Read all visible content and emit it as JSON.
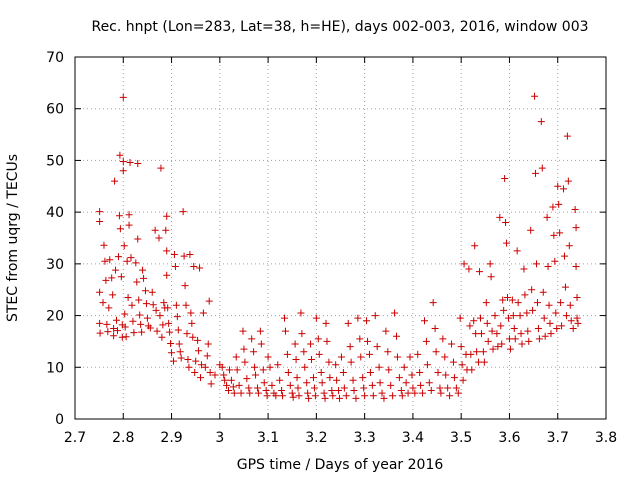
{
  "chart_data": {
    "type": "scatter",
    "title": "Rec. hnpt (Lon=283, Lat=38, h=HE), days 002-003, 2016, window 003",
    "xlabel": "GPS time / Days of year 2016",
    "ylabel": "STEC from uqrg / TECUs",
    "xlim": [
      2.7,
      3.8
    ],
    "ylim": [
      0,
      70
    ],
    "xticks": [
      "2.7",
      "2.8",
      "2.9",
      "3",
      "3.1",
      "3.2",
      "3.3",
      "3.4",
      "3.5",
      "3.6",
      "3.7",
      "3.8"
    ],
    "yticks": [
      "0",
      "10",
      "20",
      "30",
      "40",
      "50",
      "60",
      "70"
    ],
    "grid": true,
    "marker": "+",
    "color": "#cc0000",
    "points": [
      [
        2.751,
        40.1
      ],
      [
        2.751,
        38.2
      ],
      [
        2.751,
        24.5
      ],
      [
        2.751,
        18.5
      ],
      [
        2.752,
        16.6
      ],
      [
        2.758,
        22.5
      ],
      [
        2.76,
        33.6
      ],
      [
        2.762,
        30.5
      ],
      [
        2.764,
        26.8
      ],
      [
        2.766,
        18.3
      ],
      [
        2.768,
        16.9
      ],
      [
        2.77,
        21.5
      ],
      [
        2.772,
        30.8
      ],
      [
        2.776,
        27.3
      ],
      [
        2.778,
        24.0
      ],
      [
        2.78,
        17.5
      ],
      [
        2.78,
        16.1
      ],
      [
        2.782,
        46.0
      ],
      [
        2.784,
        28.8
      ],
      [
        2.786,
        19.1
      ],
      [
        2.788,
        17.1
      ],
      [
        2.79,
        31.4
      ],
      [
        2.792,
        39.3
      ],
      [
        2.793,
        51.0
      ],
      [
        2.794,
        36.8
      ],
      [
        2.796,
        27.5
      ],
      [
        2.798,
        18.2
      ],
      [
        2.798,
        15.8
      ],
      [
        2.8,
        62.2
      ],
      [
        2.8,
        49.8
      ],
      [
        2.8,
        48.0
      ],
      [
        2.802,
        33.5
      ],
      [
        2.803,
        20.3
      ],
      [
        2.804,
        17.8
      ],
      [
        2.806,
        15.9
      ],
      [
        2.808,
        30.5
      ],
      [
        2.81,
        23.5
      ],
      [
        2.812,
        39.5
      ],
      [
        2.812,
        37.5
      ],
      [
        2.814,
        49.6
      ],
      [
        2.816,
        31.2
      ],
      [
        2.818,
        22.0
      ],
      [
        2.82,
        18.9
      ],
      [
        2.822,
        16.7
      ],
      [
        2.826,
        30.2
      ],
      [
        2.828,
        26.5
      ],
      [
        2.83,
        49.4
      ],
      [
        2.83,
        34.8
      ],
      [
        2.832,
        23.0
      ],
      [
        2.834,
        20.1
      ],
      [
        2.836,
        18.3
      ],
      [
        2.838,
        16.8
      ],
      [
        2.84,
        28.8
      ],
      [
        2.842,
        27.2
      ],
      [
        2.846,
        24.8
      ],
      [
        2.848,
        22.3
      ],
      [
        2.85,
        19.5
      ],
      [
        2.852,
        18.0
      ],
      [
        2.856,
        17.6
      ],
      [
        2.86,
        24.5
      ],
      [
        2.862,
        22.1
      ],
      [
        2.866,
        36.5
      ],
      [
        2.868,
        21.0
      ],
      [
        2.87,
        17.0
      ],
      [
        2.874,
        35.0
      ],
      [
        2.876,
        20.0
      ],
      [
        2.878,
        48.5
      ],
      [
        2.88,
        15.8
      ],
      [
        2.882,
        18.2
      ],
      [
        2.884,
        22.5
      ],
      [
        2.886,
        21.5
      ],
      [
        2.888,
        36.5
      ],
      [
        2.89,
        39.2
      ],
      [
        2.89,
        32.5
      ],
      [
        2.89,
        27.8
      ],
      [
        2.892,
        21.5
      ],
      [
        2.894,
        18.5
      ],
      [
        2.896,
        16.8
      ],
      [
        2.898,
        14.6
      ],
      [
        2.9,
        12.8
      ],
      [
        2.904,
        11.2
      ],
      [
        2.906,
        31.8
      ],
      [
        2.908,
        29.5
      ],
      [
        2.91,
        22.0
      ],
      [
        2.912,
        19.8
      ],
      [
        2.914,
        17.2
      ],
      [
        2.916,
        14.5
      ],
      [
        2.918,
        13.0
      ],
      [
        2.92,
        11.8
      ],
      [
        2.924,
        40.1
      ],
      [
        2.926,
        31.5
      ],
      [
        2.928,
        25.8
      ],
      [
        2.93,
        22.0
      ],
      [
        2.932,
        16.5
      ],
      [
        2.934,
        11.5
      ],
      [
        2.936,
        10.0
      ],
      [
        2.938,
        31.8
      ],
      [
        2.94,
        20.5
      ],
      [
        2.942,
        18.5
      ],
      [
        2.944,
        15.8
      ],
      [
        2.946,
        29.5
      ],
      [
        2.948,
        9.0
      ],
      [
        2.95,
        11.2
      ],
      [
        2.954,
        15.2
      ],
      [
        2.956,
        13.2
      ],
      [
        2.958,
        29.2
      ],
      [
        2.96,
        8.0
      ],
      [
        2.962,
        10.5
      ],
      [
        2.966,
        20.5
      ],
      [
        2.97,
        10.0
      ],
      [
        2.974,
        12.2
      ],
      [
        2.976,
        14.5
      ],
      [
        2.978,
        22.8
      ],
      [
        2.98,
        9.0
      ],
      [
        2.982,
        6.8
      ],
      [
        2.99,
        8.5
      ],
      [
        3.0,
        10.5
      ],
      [
        3.005,
        10.0
      ],
      [
        3.008,
        8.5
      ],
      [
        3.01,
        7.5
      ],
      [
        3.014,
        6.5
      ],
      [
        3.018,
        5.5
      ],
      [
        3.02,
        9.5
      ],
      [
        3.024,
        7.5
      ],
      [
        3.028,
        6.2
      ],
      [
        3.03,
        5.0
      ],
      [
        3.034,
        12.0
      ],
      [
        3.036,
        9.5
      ],
      [
        3.04,
        6.5
      ],
      [
        3.044,
        5.0
      ],
      [
        3.048,
        17.0
      ],
      [
        3.05,
        13.5
      ],
      [
        3.052,
        11.0
      ],
      [
        3.056,
        7.8
      ],
      [
        3.06,
        6.0
      ],
      [
        3.062,
        5.0
      ],
      [
        3.066,
        15.5
      ],
      [
        3.07,
        13.0
      ],
      [
        3.072,
        10.0
      ],
      [
        3.074,
        8.5
      ],
      [
        3.078,
        6.0
      ],
      [
        3.08,
        5.0
      ],
      [
        3.084,
        17.0
      ],
      [
        3.086,
        14.5
      ],
      [
        3.09,
        9.5
      ],
      [
        3.092,
        7.0
      ],
      [
        3.096,
        5.5
      ],
      [
        3.098,
        4.5
      ],
      [
        3.1,
        12.0
      ],
      [
        3.104,
        10.0
      ],
      [
        3.108,
        6.5
      ],
      [
        3.112,
        5.0
      ],
      [
        3.116,
        4.5
      ],
      [
        3.12,
        10.5
      ],
      [
        3.124,
        7.5
      ],
      [
        3.128,
        5.5
      ],
      [
        3.13,
        4.5
      ],
      [
        3.134,
        19.5
      ],
      [
        3.136,
        17.0
      ],
      [
        3.14,
        12.5
      ],
      [
        3.142,
        9.0
      ],
      [
        3.146,
        6.5
      ],
      [
        3.15,
        5.0
      ],
      [
        3.152,
        4.2
      ],
      [
        3.156,
        14.5
      ],
      [
        3.158,
        11.5
      ],
      [
        3.16,
        8.0
      ],
      [
        3.162,
        6.0
      ],
      [
        3.164,
        4.5
      ],
      [
        3.168,
        20.5
      ],
      [
        3.17,
        16.5
      ],
      [
        3.174,
        13.0
      ],
      [
        3.176,
        10.0
      ],
      [
        3.18,
        7.0
      ],
      [
        3.182,
        5.0
      ],
      [
        3.184,
        4.0
      ],
      [
        3.188,
        14.5
      ],
      [
        3.19,
        11.5
      ],
      [
        3.194,
        8.0
      ],
      [
        3.196,
        6.0
      ],
      [
        3.198,
        4.5
      ],
      [
        3.2,
        19.5
      ],
      [
        3.204,
        15.5
      ],
      [
        3.206,
        12.5
      ],
      [
        3.21,
        9.0
      ],
      [
        3.212,
        7.0
      ],
      [
        3.216,
        5.0
      ],
      [
        3.218,
        4.0
      ],
      [
        3.22,
        18.5
      ],
      [
        3.222,
        15.0
      ],
      [
        3.226,
        11.0
      ],
      [
        3.228,
        8.0
      ],
      [
        3.232,
        5.5
      ],
      [
        3.234,
        4.5
      ],
      [
        3.24,
        10.5
      ],
      [
        3.242,
        7.5
      ],
      [
        3.246,
        5.5
      ],
      [
        3.248,
        4.0
      ],
      [
        3.252,
        12.0
      ],
      [
        3.256,
        9.0
      ],
      [
        3.258,
        6.0
      ],
      [
        3.262,
        4.5
      ],
      [
        3.266,
        18.5
      ],
      [
        3.27,
        14.0
      ],
      [
        3.272,
        11.0
      ],
      [
        3.276,
        7.5
      ],
      [
        3.278,
        5.5
      ],
      [
        3.282,
        4.0
      ],
      [
        3.286,
        19.5
      ],
      [
        3.29,
        15.5
      ],
      [
        3.292,
        12.0
      ],
      [
        3.296,
        8.0
      ],
      [
        3.298,
        6.0
      ],
      [
        3.3,
        4.5
      ],
      [
        3.304,
        19.0
      ],
      [
        3.306,
        15.0
      ],
      [
        3.31,
        12.5
      ],
      [
        3.312,
        9.0
      ],
      [
        3.316,
        6.5
      ],
      [
        3.318,
        4.5
      ],
      [
        3.322,
        20.0
      ],
      [
        3.326,
        14.0
      ],
      [
        3.33,
        10.0
      ],
      [
        3.332,
        7.0
      ],
      [
        3.336,
        5.0
      ],
      [
        3.34,
        4.0
      ],
      [
        3.344,
        17.0
      ],
      [
        3.348,
        13.0
      ],
      [
        3.35,
        9.5
      ],
      [
        3.354,
        6.5
      ],
      [
        3.358,
        4.5
      ],
      [
        3.362,
        20.5
      ],
      [
        3.366,
        16.0
      ],
      [
        3.368,
        12.0
      ],
      [
        3.372,
        8.0
      ],
      [
        3.376,
        5.5
      ],
      [
        3.378,
        4.5
      ],
      [
        3.382,
        10.0
      ],
      [
        3.386,
        7.0
      ],
      [
        3.39,
        5.0
      ],
      [
        3.394,
        12.0
      ],
      [
        3.398,
        8.5
      ],
      [
        3.4,
        6.0
      ],
      [
        3.404,
        5.0
      ],
      [
        3.41,
        12.5
      ],
      [
        3.414,
        9.0
      ],
      [
        3.416,
        6.5
      ],
      [
        3.42,
        5.0
      ],
      [
        3.424,
        19.0
      ],
      [
        3.428,
        15.0
      ],
      [
        3.43,
        10.5
      ],
      [
        3.434,
        7.0
      ],
      [
        3.438,
        5.5
      ],
      [
        3.442,
        22.5
      ],
      [
        3.446,
        17.5
      ],
      [
        3.448,
        13.0
      ],
      [
        3.452,
        9.0
      ],
      [
        3.456,
        6.0
      ],
      [
        3.458,
        5.0
      ],
      [
        3.462,
        15.5
      ],
      [
        3.466,
        12.0
      ],
      [
        3.468,
        8.5
      ],
      [
        3.472,
        6.0
      ],
      [
        3.476,
        4.5
      ],
      [
        3.48,
        14.5
      ],
      [
        3.484,
        11.0
      ],
      [
        3.486,
        8.0
      ],
      [
        3.49,
        6.0
      ],
      [
        3.494,
        5.0
      ],
      [
        3.498,
        19.5
      ],
      [
        3.5,
        14.0
      ],
      [
        3.502,
        10.5
      ],
      [
        3.504,
        7.5
      ],
      [
        3.506,
        30.0
      ],
      [
        3.51,
        12.5
      ],
      [
        3.512,
        9.5
      ],
      [
        3.516,
        29.0
      ],
      [
        3.518,
        18.0
      ],
      [
        3.52,
        12.5
      ],
      [
        3.522,
        9.5
      ],
      [
        3.526,
        19.0
      ],
      [
        3.528,
        33.5
      ],
      [
        3.53,
        16.5
      ],
      [
        3.532,
        13.0
      ],
      [
        3.536,
        11.0
      ],
      [
        3.538,
        28.5
      ],
      [
        3.54,
        19.5
      ],
      [
        3.542,
        16.5
      ],
      [
        3.546,
        13.0
      ],
      [
        3.548,
        11.0
      ],
      [
        3.552,
        22.5
      ],
      [
        3.554,
        18.5
      ],
      [
        3.556,
        15.0
      ],
      [
        3.56,
        30.0
      ],
      [
        3.562,
        27.5
      ],
      [
        3.564,
        17.0
      ],
      [
        3.566,
        13.5
      ],
      [
        3.57,
        20.0
      ],
      [
        3.574,
        16.5
      ],
      [
        3.576,
        14.0
      ],
      [
        3.58,
        39.0
      ],
      [
        3.582,
        18.0
      ],
      [
        3.584,
        14.5
      ],
      [
        3.586,
        23.0
      ],
      [
        3.588,
        21.0
      ],
      [
        3.59,
        46.5
      ],
      [
        3.592,
        38.0
      ],
      [
        3.594,
        34.0
      ],
      [
        3.596,
        23.5
      ],
      [
        3.598,
        19.5
      ],
      [
        3.6,
        15.5
      ],
      [
        3.602,
        13.5
      ],
      [
        3.606,
        23.0
      ],
      [
        3.608,
        20.0
      ],
      [
        3.61,
        17.5
      ],
      [
        3.612,
        15.5
      ],
      [
        3.616,
        32.5
      ],
      [
        3.618,
        22.5
      ],
      [
        3.622,
        20.0
      ],
      [
        3.624,
        16.5
      ],
      [
        3.626,
        14.5
      ],
      [
        3.63,
        29.0
      ],
      [
        3.632,
        24.0
      ],
      [
        3.636,
        20.5
      ],
      [
        3.638,
        17.0
      ],
      [
        3.64,
        15.0
      ],
      [
        3.644,
        36.5
      ],
      [
        3.646,
        25.0
      ],
      [
        3.648,
        21.0
      ],
      [
        3.652,
        62.4
      ],
      [
        3.654,
        47.5
      ],
      [
        3.656,
        30.0
      ],
      [
        3.658,
        22.5
      ],
      [
        3.66,
        17.5
      ],
      [
        3.662,
        15.5
      ],
      [
        3.666,
        57.5
      ],
      [
        3.668,
        48.5
      ],
      [
        3.67,
        24.5
      ],
      [
        3.672,
        19.5
      ],
      [
        3.674,
        16.0
      ],
      [
        3.678,
        39.0
      ],
      [
        3.68,
        29.5
      ],
      [
        3.682,
        22.0
      ],
      [
        3.684,
        18.5
      ],
      [
        3.686,
        16.5
      ],
      [
        3.69,
        41.0
      ],
      [
        3.692,
        35.5
      ],
      [
        3.694,
        30.5
      ],
      [
        3.696,
        20.5
      ],
      [
        3.698,
        17.5
      ],
      [
        3.7,
        45.0
      ],
      [
        3.702,
        41.5
      ],
      [
        3.704,
        36.0
      ],
      [
        3.706,
        22.5
      ],
      [
        3.708,
        18.0
      ],
      [
        3.712,
        44.5
      ],
      [
        3.714,
        31.5
      ],
      [
        3.716,
        25.5
      ],
      [
        3.718,
        20.0
      ],
      [
        3.72,
        54.7
      ],
      [
        3.722,
        46.0
      ],
      [
        3.724,
        33.5
      ],
      [
        3.726,
        22.0
      ],
      [
        3.728,
        19.0
      ],
      [
        3.732,
        17.5
      ],
      [
        3.736,
        40.5
      ],
      [
        3.738,
        37.0
      ],
      [
        3.738,
        29.5
      ],
      [
        3.74,
        23.5
      ],
      [
        3.74,
        19.5
      ],
      [
        3.742,
        18.5
      ]
    ]
  }
}
